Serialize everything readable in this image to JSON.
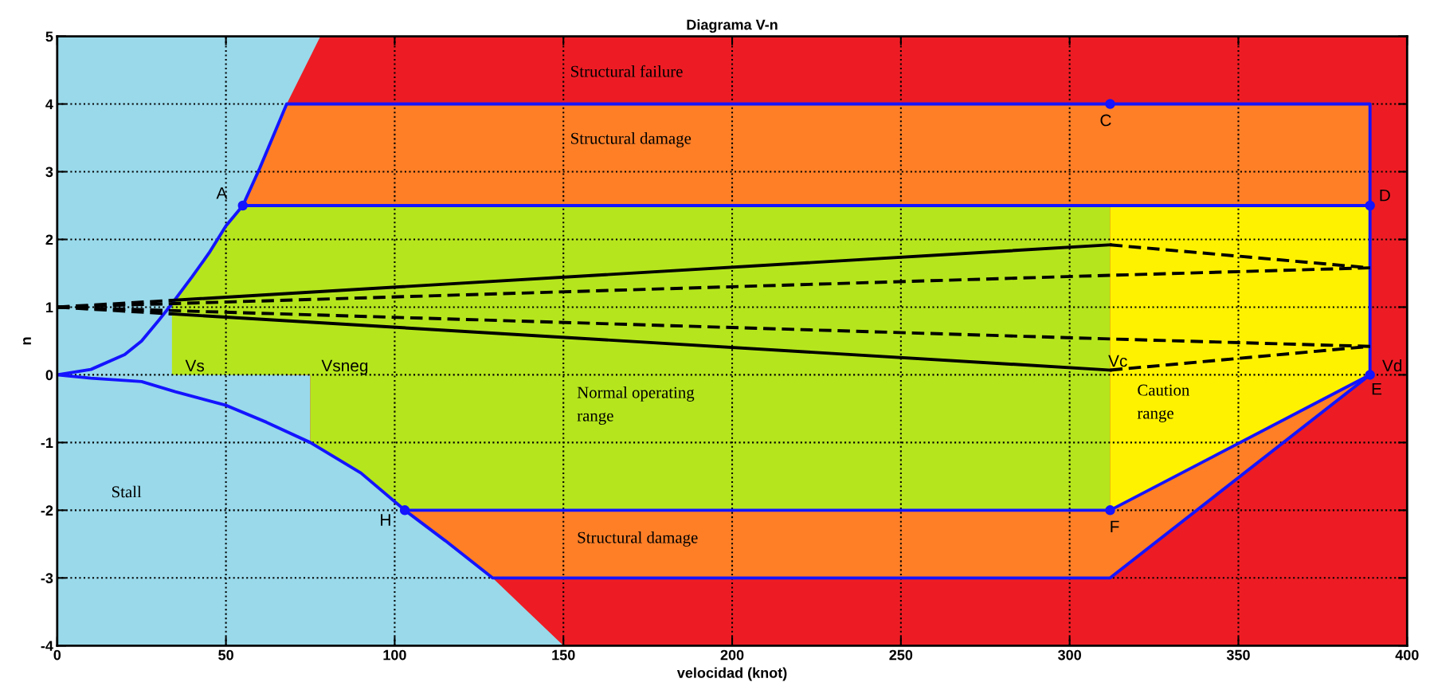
{
  "chart_data": {
    "type": "line",
    "title": "Diagrama V-n",
    "xlabel": "velocidad (knot)",
    "ylabel": "n",
    "xlim": [
      0,
      400
    ],
    "xticks": [
      0,
      50,
      100,
      150,
      200,
      250,
      300,
      350,
      400
    ],
    "ylim": [
      -4,
      5
    ],
    "yticks": [
      -4,
      -3,
      -2,
      -1,
      0,
      1,
      2,
      3,
      4,
      5
    ],
    "grid": true,
    "legend": false,
    "series": [
      {
        "type": "line",
        "color": "#99d9ea",
        "x": [
          0,
          400
        ],
        "values": [
          null,
          null
        ],
        "lower": [
          -4,
          -4
        ],
        "upper": [
          5,
          5
        ]
      },
      {
        "type": "line",
        "color": "#ed1c24",
        "x": [
          68,
          75,
          75,
          78,
          90,
          103,
          115,
          129,
          150,
          400
        ],
        "values": [
          null,
          null,
          null,
          null,
          null,
          null,
          null,
          null,
          null,
          null
        ],
        "lower": [
          0,
          0,
          -1,
          -1.1,
          -1.45,
          -2,
          -2.45,
          -3,
          -4,
          -4
        ],
        "upper": [
          4,
          4.7,
          4.7,
          5,
          5,
          5,
          5,
          5,
          5,
          5
        ]
      },
      {
        "type": "line",
        "color": "#b5e61d",
        "x": [
          34,
          40,
          45,
          50,
          55,
          75,
          75,
          90,
          103,
          312
        ],
        "values": [
          null,
          null,
          null,
          null,
          null,
          null,
          null,
          null,
          null,
          null
        ],
        "lower": [
          0,
          0,
          0,
          0,
          0,
          0,
          -1,
          -1.45,
          -2,
          -2
        ],
        "upper": [
          1.05,
          1.45,
          1.8,
          2.2,
          2.5,
          2.5,
          2.5,
          2.5,
          2.5,
          2.5
        ]
      },
      {
        "type": "line",
        "color": "#fff200",
        "x": [
          312,
          389
        ],
        "values": [
          null,
          null
        ],
        "lower": [
          -2,
          0
        ],
        "upper": [
          2.5,
          2.5
        ]
      },
      {
        "type": "line",
        "color": "#ff7f27",
        "x": [
          55,
          60,
          68,
          389
        ],
        "values": [
          null,
          null,
          null,
          null
        ],
        "lower": [
          2.5,
          2.5,
          2.5,
          2.5
        ],
        "upper": [
          2.5,
          3.05,
          4,
          4
        ]
      },
      {
        "type": "line",
        "color": "#ff7f27",
        "x": [
          103,
          115,
          129,
          312,
          389
        ],
        "values": [
          null,
          null,
          null,
          null,
          null
        ],
        "lower": [
          -2,
          -2.45,
          -3,
          -3,
          0
        ],
        "upper": [
          -2,
          -2,
          -2,
          -2,
          0
        ]
      },
      {
        "color": "#1414ff",
        "line_style": "solid",
        "x": [
          0,
          10,
          20,
          25,
          30,
          34,
          40,
          45,
          50,
          55,
          60,
          68,
          389,
          389
        ],
        "values": [
          0,
          0.08,
          0.3,
          0.5,
          0.8,
          1.05,
          1.45,
          1.8,
          2.2,
          2.5,
          3.05,
          4,
          4,
          0
        ]
      },
      {
        "color": "#1414ff",
        "line_style": "solid",
        "x": [
          55,
          389
        ],
        "values": [
          2.5,
          2.5
        ]
      },
      {
        "color": "#1414ff",
        "line_style": "solid",
        "x": [
          0,
          10,
          25,
          35,
          50,
          62,
          75,
          90,
          103,
          115,
          129,
          312,
          389
        ],
        "values": [
          0,
          -0.05,
          -0.1,
          -0.25,
          -0.45,
          -0.7,
          -1,
          -1.45,
          -2,
          -2.45,
          -3,
          -3,
          0
        ]
      },
      {
        "color": "#1414ff",
        "line_style": "solid",
        "x": [
          103,
          312,
          389
        ],
        "values": [
          -2,
          -2,
          0
        ]
      },
      {
        "color": "#000000",
        "line_style": "dashed",
        "x": [
          0,
          34
        ],
        "values": [
          1,
          1.1
        ]
      },
      {
        "color": "#000000",
        "line_style": "solid",
        "x": [
          34,
          312
        ],
        "values": [
          1.1,
          1.92
        ]
      },
      {
        "color": "#000000",
        "line_style": "dashed",
        "x": [
          312,
          389
        ],
        "values": [
          1.92,
          1.58
        ]
      },
      {
        "color": "#000000",
        "line_style": "dashed",
        "x": [
          0,
          312,
          389
        ],
        "values": [
          1,
          1.47,
          1.58
        ]
      },
      {
        "color": "#000000",
        "line_style": "dashed",
        "x": [
          0,
          312,
          389
        ],
        "values": [
          1,
          0.53,
          0.42
        ]
      },
      {
        "color": "#000000",
        "line_style": "dashed",
        "x": [
          0,
          34
        ],
        "values": [
          1,
          0.9
        ]
      },
      {
        "color": "#000000",
        "line_style": "solid",
        "x": [
          34,
          312
        ],
        "values": [
          0.9,
          0.07
        ]
      },
      {
        "color": "#000000",
        "line_style": "dashed",
        "x": [
          312,
          389
        ],
        "values": [
          0.07,
          0.42
        ]
      },
      {
        "type": "scatter",
        "color": "#1414ff",
        "marker": "circle",
        "x": [
          55,
          312,
          389,
          389,
          312,
          103
        ],
        "values": [
          2.5,
          4,
          2.5,
          0,
          -2,
          -2
        ]
      }
    ],
    "annotations": [
      "Structural failure",
      "Structural damage",
      "Normal operating\nrange",
      "Caution\nrange",
      "Structural damage",
      "Stall",
      {
        "text": "A",
        "x": 55,
        "y": 2.5
      },
      {
        "text": "C",
        "x": 312,
        "y": 4
      },
      {
        "text": "D",
        "x": 389,
        "y": 2.5
      },
      {
        "text": "E",
        "x": 389,
        "y": 0
      },
      {
        "text": "F",
        "x": 312,
        "y": -2
      },
      {
        "text": "H",
        "x": 103,
        "y": -2
      },
      {
        "text": "Vs",
        "x": 34,
        "y": 0
      },
      {
        "text": "Vsneg",
        "x": 75,
        "y": 0
      },
      {
        "text": "Vc",
        "x": 312,
        "y": 0.07
      },
      {
        "text": "Vd",
        "x": 389,
        "y": 0
      }
    ]
  }
}
